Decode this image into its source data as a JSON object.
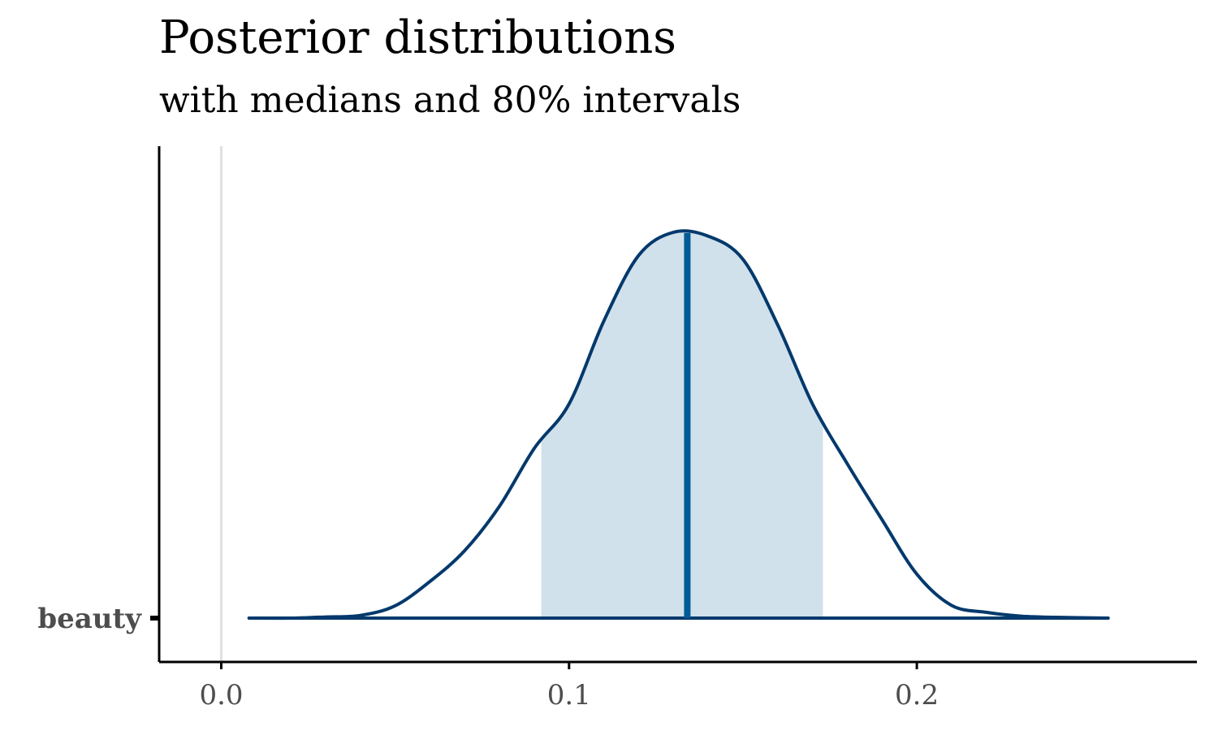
{
  "chart_data": {
    "type": "area",
    "title": "Posterior distributions",
    "subtitle": "with medians and 80% intervals",
    "xlabel": "",
    "ylabel": "",
    "xlim": [
      -0.018,
      0.281
    ],
    "x_ticks": [
      0.0,
      0.1,
      0.2
    ],
    "x_tick_labels": [
      "0.0",
      "0.1",
      "0.2"
    ],
    "reference_line_x": 0.0,
    "categories": [
      "beauty"
    ],
    "series": [
      {
        "name": "beauty",
        "median": 0.134,
        "interval_80": [
          0.092,
          0.173
        ],
        "density_relative": [
          [
            0.008,
            0.0
          ],
          [
            0.02,
            0.0
          ],
          [
            0.03,
            0.003
          ],
          [
            0.04,
            0.007
          ],
          [
            0.05,
            0.032
          ],
          [
            0.06,
            0.095
          ],
          [
            0.07,
            0.175
          ],
          [
            0.08,
            0.29
          ],
          [
            0.09,
            0.44
          ],
          [
            0.1,
            0.555
          ],
          [
            0.11,
            0.77
          ],
          [
            0.12,
            0.94
          ],
          [
            0.13,
            1.0
          ],
          [
            0.14,
            0.99
          ],
          [
            0.15,
            0.93
          ],
          [
            0.16,
            0.76
          ],
          [
            0.17,
            0.555
          ],
          [
            0.18,
            0.4
          ],
          [
            0.19,
            0.255
          ],
          [
            0.2,
            0.114
          ],
          [
            0.21,
            0.033
          ],
          [
            0.22,
            0.015
          ],
          [
            0.23,
            0.005
          ],
          [
            0.24,
            0.002
          ],
          [
            0.255,
            0.0
          ]
        ]
      }
    ],
    "colors": {
      "outline": "#03396c",
      "interval_fill": "#d1e1ec",
      "median_line": "#005b96",
      "reference_line": "#e0e0e0",
      "axis": "#000000",
      "tick_label": "#4d4d4d"
    },
    "grid": false
  }
}
